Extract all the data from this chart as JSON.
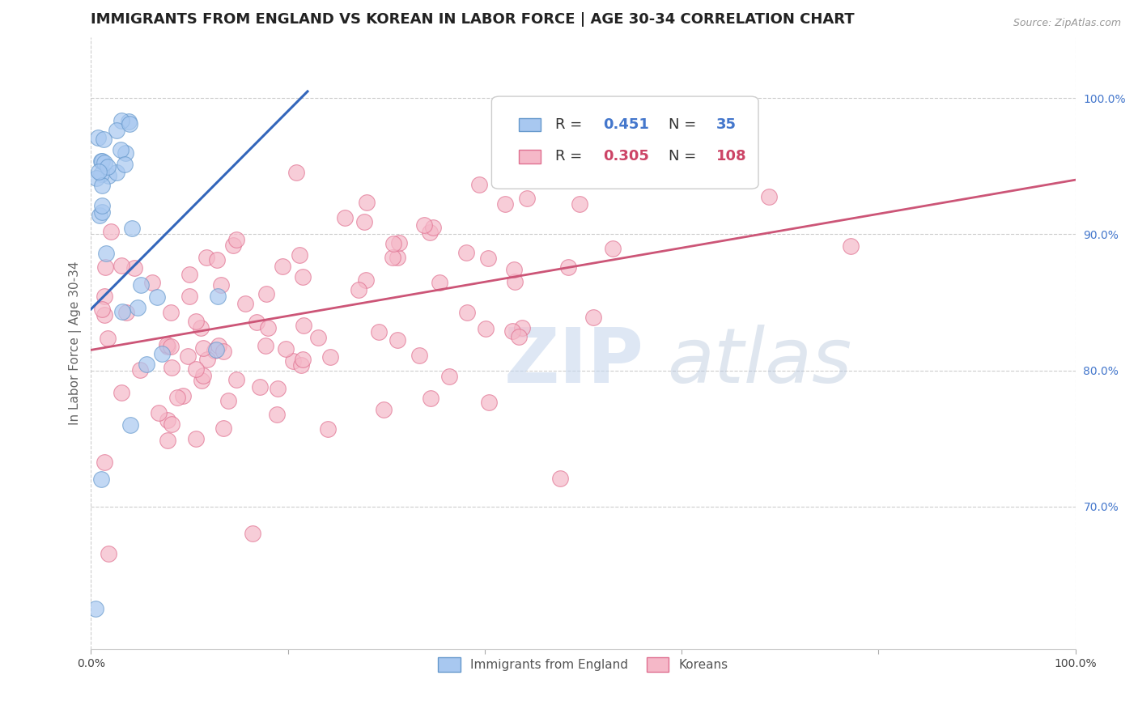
{
  "title": "IMMIGRANTS FROM ENGLAND VS KOREAN IN LABOR FORCE | AGE 30-34 CORRELATION CHART",
  "source_text": "Source: ZipAtlas.com",
  "ylabel": "In Labor Force | Age 30-34",
  "xlim": [
    0.0,
    1.0
  ],
  "ylim": [
    0.595,
    1.045
  ],
  "y_tick_right_labels": [
    "100.0%",
    "90.0%",
    "80.0%",
    "70.0%"
  ],
  "y_tick_right_values": [
    1.0,
    0.9,
    0.8,
    0.7
  ],
  "color_england": "#A8C8F0",
  "color_korean": "#F5B8C8",
  "color_england_edge": "#6699CC",
  "color_korean_edge": "#E07090",
  "color_line_england": "#3366BB",
  "color_line_korean": "#CC5577",
  "bg_color": "#FFFFFF",
  "grid_color": "#CCCCCC",
  "title_fontsize": 13,
  "axis_label_fontsize": 11,
  "tick_fontsize": 10,
  "legend_fontsize": 13,
  "england_trend_x": [
    0.0,
    0.22
  ],
  "england_trend_y": [
    0.845,
    1.005
  ],
  "korean_trend_x": [
    0.0,
    1.0
  ],
  "korean_trend_y": [
    0.815,
    0.94
  ]
}
